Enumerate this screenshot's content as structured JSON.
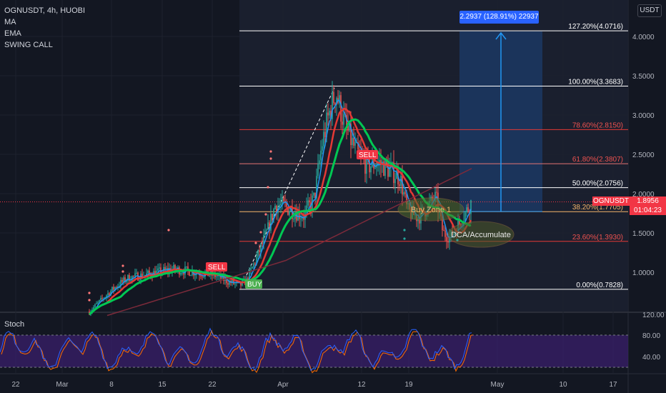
{
  "legend": {
    "symbol": "OGNUSDT, 4h, HUOBI",
    "items": [
      "MA",
      "EMA",
      "SWING CALL"
    ]
  },
  "currency_button": "USDT",
  "stoch_label": "Stoch",
  "price_tag": {
    "name": "OGNUSDT",
    "price": "1.8956",
    "countdown": "01:04:23"
  },
  "measure_label": "2.2937 (128.91%) 22937",
  "stoch_tags": [
    "120.00",
    "80.00",
    "40.00"
  ],
  "colors": {
    "background": "#131722",
    "up": "#26a69a",
    "down": "#ef5350",
    "ma": "#2196f3",
    "ema": "#e53935",
    "swing": "#00c853",
    "measure": "#2962ff"
  },
  "chart_data": {
    "type": "candlestick",
    "price_axis": {
      "ticks": [
        1.0,
        1.5,
        2.0,
        2.5,
        3.0,
        3.5,
        4.0
      ],
      "labels": [
        "1.0000",
        "1.5000",
        "2.0000",
        "2.5000",
        "3.0000",
        "3.5000",
        "4.0000"
      ]
    },
    "time_axis": [
      "22",
      "Mar",
      "8",
      "15",
      "22",
      "Apr",
      "12",
      "19",
      "May",
      "10",
      "17"
    ],
    "fib_levels": [
      {
        "label": "127.20%(4.0716)",
        "value": 4.0716
      },
      {
        "label": "100.00%(3.3683)",
        "value": 3.3683
      },
      {
        "label": "78.60%(2.8150)",
        "value": 2.815
      },
      {
        "label": "61.80%(2.3807)",
        "value": 2.3807
      },
      {
        "label": "50.00%(2.0756)",
        "value": 2.0756
      },
      {
        "label": "38.20%(1.7705)",
        "value": 1.7705
      },
      {
        "label": "23.60%(1.3930)",
        "value": 1.393
      },
      {
        "label": "0.00%(0.7828)",
        "value": 0.7828
      }
    ],
    "annotations": [
      "BUY",
      "SELL",
      "SELL",
      "Buy Zone 1",
      "DCA/Accumulate"
    ],
    "last_price": 1.8956,
    "measure_target": 4.0716,
    "stoch_axis": [
      40.0,
      80.0,
      120.0
    ]
  }
}
